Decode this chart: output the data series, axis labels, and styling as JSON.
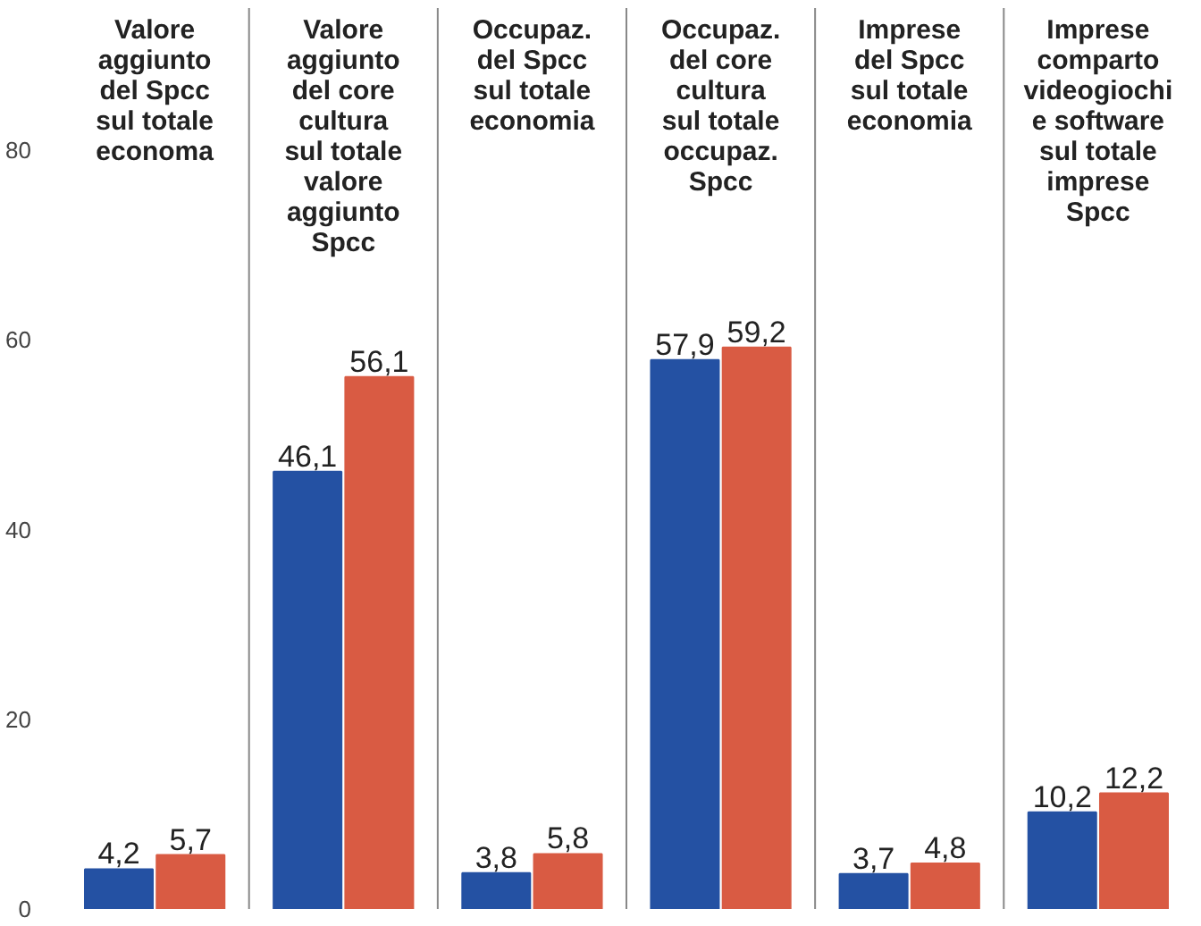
{
  "chart_data": {
    "type": "bar",
    "categories": [
      "Valore\naggiunto\ndel Spcc\nsul totale\neconoma",
      "Valore\naggiunto\ndel core\ncultura\nsul totale\nvalore\naggiunto\nSpcc",
      "Occupaz.\ndel Spcc\nsul totale\neconomia",
      "Occupaz.\ndel core\ncultura\nsul totale\noccupaz.\nSpcc",
      "Imprese\ndel Spcc\nsul totale\neconomia",
      "Imprese\ncomparto\nvideogiochi\ne software\nsul totale\nimprese\nSpcc"
    ],
    "series": [
      {
        "color": "#2451a3",
        "values": [
          4.2,
          46.1,
          3.8,
          57.9,
          3.7,
          10.2
        ],
        "value_labels": [
          "4,2",
          "46,1",
          "3,8",
          "57,9",
          "3,7",
          "10,2"
        ]
      },
      {
        "color": "#d95b43",
        "values": [
          5.7,
          56.1,
          5.8,
          59.2,
          4.8,
          12.2
        ],
        "value_labels": [
          "5,7",
          "56,1",
          "5,8",
          "59,2",
          "4,8",
          "12,2"
        ]
      }
    ],
    "ylim": [
      0,
      95
    ],
    "yticks": [
      0,
      20,
      40,
      60,
      80
    ],
    "grid": false
  }
}
